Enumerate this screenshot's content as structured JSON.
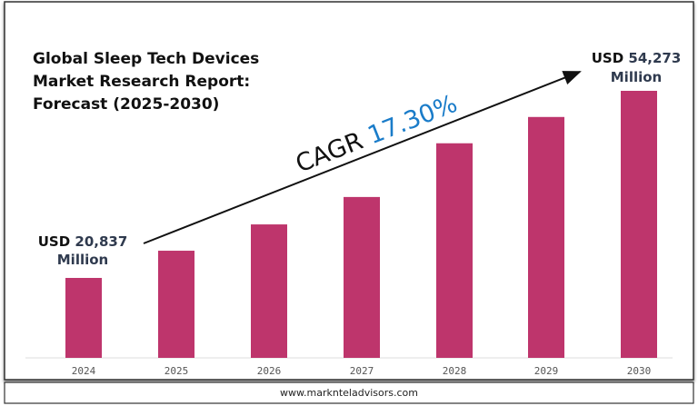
{
  "chart_data": {
    "type": "bar",
    "title": "Global Sleep Tech Devices Market Research Report: Forecast (2025-2030)",
    "title_lines": [
      "Global Sleep Tech Devices",
      "Market Research Report:",
      "Forecast (2025-2030)"
    ],
    "categories": [
      "2024",
      "2025",
      "2026",
      "2027",
      "2028",
      "2029",
      "2030"
    ],
    "values": [
      20837,
      25700,
      30400,
      35300,
      44900,
      49600,
      54273
    ],
    "unit": "USD Million",
    "ylim": [
      6551,
      54273
    ],
    "grid": false,
    "bar_color": "#BE356C",
    "annotations": {
      "start": {
        "prefix": "USD ",
        "value": "20,837",
        "unit": "Million"
      },
      "end": {
        "prefix": "USD ",
        "value": "54,273",
        "unit": "Million"
      },
      "cagr_label": "CAGR ",
      "cagr_value": "17.30%",
      "cagr_color": "#1A7CC9",
      "value_color": "#2F3A4E"
    }
  },
  "footer": {
    "website": "www.marknteladvisors.com"
  }
}
